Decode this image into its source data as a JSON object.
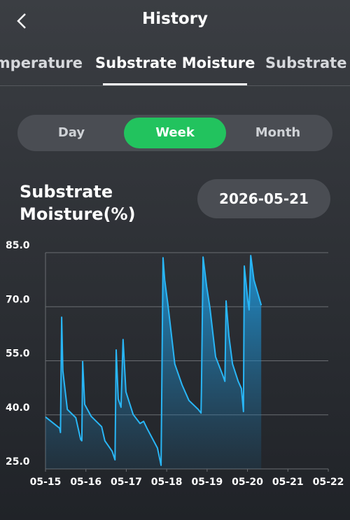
{
  "header": {
    "title": "History"
  },
  "tabs": [
    "Temperature",
    "Substrate Moisture",
    "Substrate"
  ],
  "segments": [
    "Day",
    "Week",
    "Month"
  ],
  "chart_heading": "Substrate Moisture(%)",
  "date": "2026-05-21",
  "chart_data": {
    "type": "area",
    "x": [
      0,
      0.35,
      0.37,
      0.4,
      0.43,
      0.54,
      0.75,
      0.87,
      0.9,
      0.92,
      0.97,
      1.13,
      1.39,
      1.47,
      1.65,
      1.72,
      1.75,
      1.8,
      1.87,
      1.92,
      1.99,
      2.17,
      2.34,
      2.43,
      2.51,
      2.77,
      2.86,
      2.91,
      2.95,
      3.03,
      3.12,
      3.2,
      3.38,
      3.55,
      3.78,
      3.85,
      3.86,
      3.9,
      3.99,
      4.07,
      4.21,
      4.38,
      4.44,
      4.47,
      4.54,
      4.63,
      4.77,
      4.85,
      4.9,
      4.92,
      5.01,
      5.04,
      5.08,
      5.16,
      5.34
    ],
    "values": [
      39.4,
      36.3,
      35.1,
      67.1,
      52.2,
      41.5,
      39.2,
      33.2,
      32.8,
      54.8,
      42.9,
      39.6,
      36.7,
      32.8,
      29.9,
      27.5,
      58.0,
      44.4,
      42.1,
      60.9,
      46.4,
      40.1,
      37.6,
      38.2,
      36.3,
      30.8,
      26.0,
      83.6,
      77.4,
      70.6,
      61.9,
      54.1,
      48.3,
      44.0,
      41.5,
      40.5,
      47.3,
      83.8,
      75.5,
      69.7,
      56.1,
      51.2,
      49.3,
      71.6,
      61.9,
      54.1,
      49.3,
      47.3,
      40.9,
      81.3,
      71.6,
      69.1,
      84.2,
      77.4,
      70.4
    ],
    "color": "#29b6f6",
    "xlim": [
      0,
      7
    ],
    "xticks": [
      {
        "value": 0,
        "label": "05-15"
      },
      {
        "value": 1,
        "label": "05-16"
      },
      {
        "value": 2,
        "label": "05-17"
      },
      {
        "value": 3,
        "label": "05-18"
      },
      {
        "value": 4,
        "label": "05-19"
      },
      {
        "value": 5,
        "label": "05-20"
      },
      {
        "value": 6,
        "label": "05-21"
      },
      {
        "value": 7,
        "label": "05-22"
      }
    ],
    "ylim": [
      25,
      85
    ],
    "yticks": [
      {
        "value": 25,
        "label": "25.0"
      },
      {
        "value": 40,
        "label": "40.0"
      },
      {
        "value": 55,
        "label": "55.0"
      },
      {
        "value": 70,
        "label": "70.0"
      },
      {
        "value": 85,
        "label": "85.0"
      }
    ],
    "grid": true
  }
}
